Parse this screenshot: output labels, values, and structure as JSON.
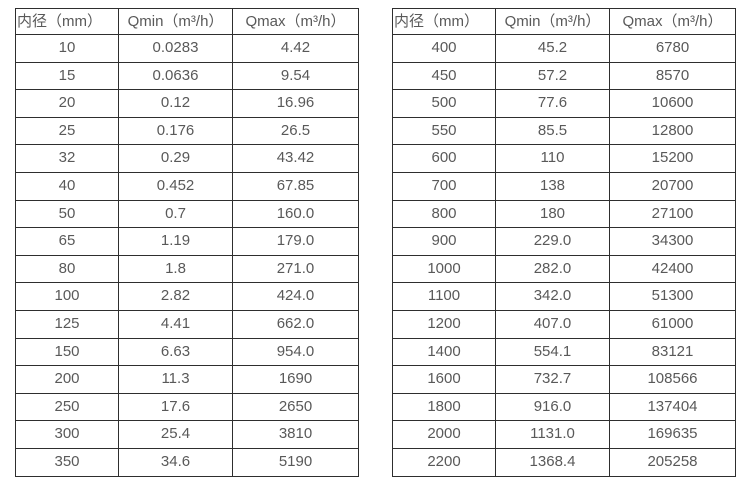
{
  "colors": {
    "background": "#ffffff",
    "table_border": "#2e2e2e",
    "text": "#595959"
  },
  "chart_data": [
    {
      "type": "table",
      "headers": [
        "内径（mm）",
        "Qmin（m³/h）",
        "Qmax（m³/h）"
      ],
      "rows": [
        [
          "10",
          "0.0283",
          "4.42"
        ],
        [
          "15",
          "0.0636",
          "9.54"
        ],
        [
          "20",
          "0.12",
          "16.96"
        ],
        [
          "25",
          "0.176",
          "26.5"
        ],
        [
          "32",
          "0.29",
          "43.42"
        ],
        [
          "40",
          "0.452",
          "67.85"
        ],
        [
          "50",
          "0.7",
          "160.0"
        ],
        [
          "65",
          "1.19",
          "179.0"
        ],
        [
          "80",
          "1.8",
          "271.0"
        ],
        [
          "100",
          "2.82",
          "424.0"
        ],
        [
          "125",
          "4.41",
          "662.0"
        ],
        [
          "150",
          "6.63",
          "954.0"
        ],
        [
          "200",
          "11.3",
          "1690"
        ],
        [
          "250",
          "17.6",
          "2650"
        ],
        [
          "300",
          "25.4",
          "3810"
        ],
        [
          "350",
          "34.6",
          "5190"
        ]
      ]
    },
    {
      "type": "table",
      "headers": [
        "内径（mm）",
        "Qmin（m³/h）",
        "Qmax（m³/h）"
      ],
      "rows": [
        [
          "400",
          "45.2",
          "6780"
        ],
        [
          "450",
          "57.2",
          "8570"
        ],
        [
          "500",
          "77.6",
          "10600"
        ],
        [
          "550",
          "85.5",
          "12800"
        ],
        [
          "600",
          "110",
          "15200"
        ],
        [
          "700",
          "138",
          "20700"
        ],
        [
          "800",
          "180",
          "27100"
        ],
        [
          "900",
          "229.0",
          "34300"
        ],
        [
          "1000",
          "282.0",
          "42400"
        ],
        [
          "1100",
          "342.0",
          "51300"
        ],
        [
          "1200",
          "407.0",
          "61000"
        ],
        [
          "1400",
          "554.1",
          "83121"
        ],
        [
          "1600",
          "732.7",
          "108566"
        ],
        [
          "1800",
          "916.0",
          "137404"
        ],
        [
          "2000",
          "1131.0",
          "169635"
        ],
        [
          "2200",
          "1368.4",
          "205258"
        ]
      ]
    }
  ]
}
